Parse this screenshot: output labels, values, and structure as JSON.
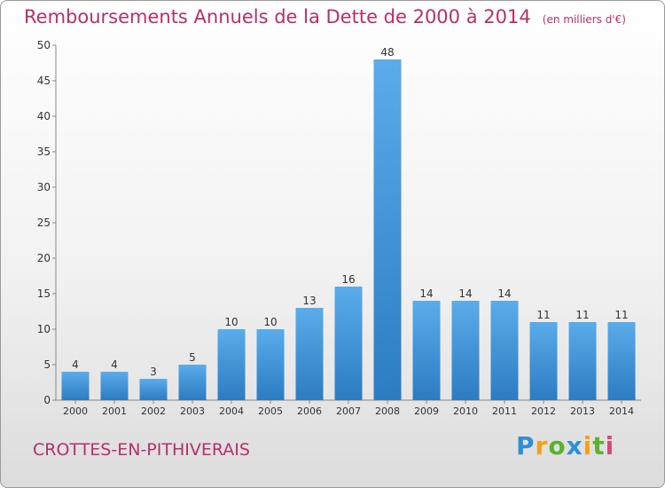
{
  "chart_data": {
    "type": "bar",
    "title": "Remboursements Annuels de la Dette de 2000 à 2014",
    "unit_label": "(en milliers d'€)",
    "categories": [
      "2000",
      "2001",
      "2002",
      "2003",
      "2004",
      "2005",
      "2006",
      "2007",
      "2008",
      "2009",
      "2010",
      "2011",
      "2012",
      "2013",
      "2014"
    ],
    "values": [
      4,
      4,
      3,
      5,
      10,
      10,
      13,
      16,
      48,
      14,
      14,
      14,
      11,
      11,
      11
    ],
    "ylim": [
      0,
      50
    ],
    "yticks": [
      0,
      5,
      10,
      15,
      20,
      25,
      30,
      35,
      40,
      45,
      50
    ],
    "xlabel": "",
    "ylabel": "",
    "grid": false,
    "bar_color": "#3a8fd6"
  },
  "footer": {
    "commune": "CROTTES-EN-PITHIVERAIS",
    "logo_text": "Proxiti"
  }
}
